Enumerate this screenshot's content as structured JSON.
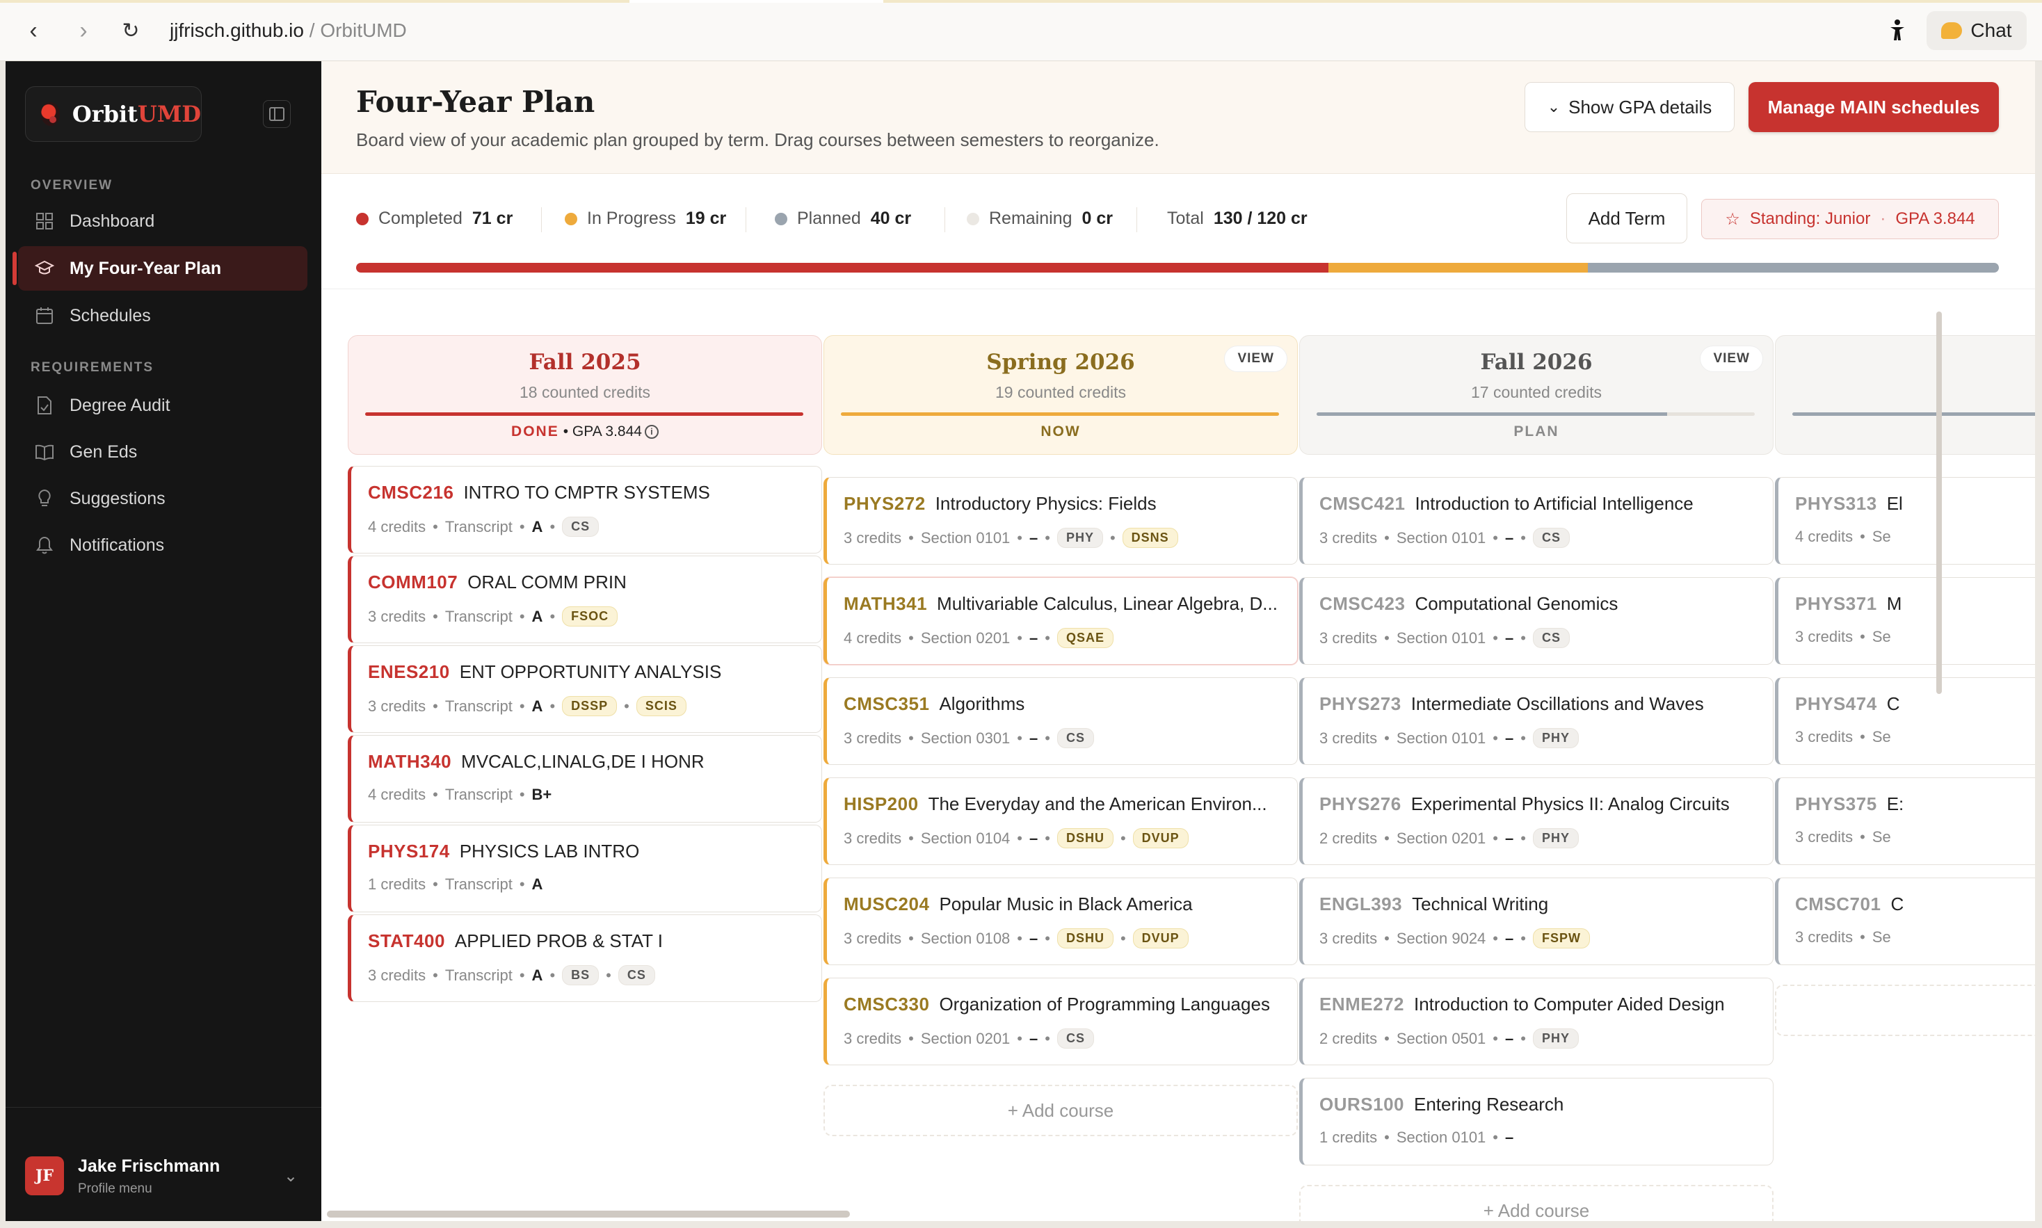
{
  "browser": {
    "url_host": "jjfrisch.github.io",
    "url_sep": " / ",
    "url_title": "OrbitUMD",
    "chat_label": "Chat"
  },
  "sidebar": {
    "brand_orbit": "Orbit",
    "brand_umd": "UMD",
    "overview_label": "OVERVIEW",
    "requirements_label": "REQUIREMENTS",
    "overview_items": [
      {
        "label": "Dashboard",
        "icon": "grid-icon"
      },
      {
        "label": "My Four-Year Plan",
        "icon": "graduation-cap-icon",
        "active": true
      },
      {
        "label": "Schedules",
        "icon": "calendar-icon"
      }
    ],
    "requirement_items": [
      {
        "label": "Degree Audit",
        "icon": "document-check-icon"
      },
      {
        "label": "Gen Eds",
        "icon": "book-open-icon"
      },
      {
        "label": "Suggestions",
        "icon": "lightbulb-icon"
      },
      {
        "label": "Notifications",
        "icon": "bell-icon"
      }
    ],
    "profile": {
      "initials": "JF",
      "name": "Jake Frischmann",
      "sub": "Profile menu"
    }
  },
  "header": {
    "title": "Four-Year Plan",
    "description": "Board view of your academic plan grouped by term. Drag courses between semesters to reorganize.",
    "gpa_button": "Show GPA details",
    "main_button": "Manage MAIN schedules"
  },
  "stats": {
    "completed_label": "Completed",
    "completed_value": "71 cr",
    "inprogress_label": "In Progress",
    "inprogress_value": "19 cr",
    "planned_label": "Planned",
    "planned_value": "40 cr",
    "remaining_label": "Remaining",
    "remaining_value": "0 cr",
    "total_label": "Total",
    "total_value": "130 / 120 cr",
    "add_term": "Add Term",
    "standing": "Standing: Junior",
    "standing_sep": "·",
    "gpa": "GPA 3.844",
    "progress_fractions": {
      "completed": 0.592,
      "in_progress": 0.158,
      "planned": 0.25
    },
    "colors": {
      "completed": "#c7332f",
      "in_progress": "#eeaa3c",
      "planned": "#9aa4ae",
      "remaining": "#ebe8e3"
    }
  },
  "columns": [
    {
      "term": "Fall 2025",
      "credits": "18 counted credits",
      "status": "DONE",
      "gpa": "• GPA 3.844",
      "kind": "done",
      "bar_fill": 1.0,
      "courses": [
        {
          "code": "CMSC216",
          "title": "INTRO TO CMPTR SYSTEMS",
          "credits": "4 credits",
          "source": "Transcript",
          "grade": "A",
          "tags": [
            "CS"
          ]
        },
        {
          "code": "COMM107",
          "title": "ORAL COMM PRIN",
          "credits": "3 credits",
          "source": "Transcript",
          "grade": "A",
          "tags": [
            "FSOC"
          ]
        },
        {
          "code": "ENES210",
          "title": "ENT OPPORTUNITY ANALYSIS",
          "credits": "3 credits",
          "source": "Transcript",
          "grade": "A",
          "tags": [
            "DSSP",
            "SCIS"
          ]
        },
        {
          "code": "MATH340",
          "title": "MVCALC,LINALG,DE I HONR",
          "credits": "4 credits",
          "source": "Transcript",
          "grade": "B+",
          "tags": []
        },
        {
          "code": "PHYS174",
          "title": "PHYSICS LAB INTRO",
          "credits": "1 credits",
          "source": "Transcript",
          "grade": "A",
          "tags": []
        },
        {
          "code": "STAT400",
          "title": "APPLIED PROB & STAT I",
          "credits": "3 credits",
          "source": "Transcript",
          "grade": "A",
          "tags": [
            "BS",
            "CS"
          ]
        }
      ]
    },
    {
      "term": "Spring 2026",
      "credits": "19 counted credits",
      "status": "NOW",
      "view": "VIEW",
      "kind": "now",
      "bar_fill": 1.0,
      "courses": [
        {
          "code": "PHYS272",
          "title": "Introductory Physics: Fields",
          "credits": "3 credits",
          "source": "Section 0101",
          "grade": "–",
          "tags": [
            "PHY",
            "DSNS"
          ]
        },
        {
          "code": "MATH341",
          "title": "Multivariable Calculus, Linear Algebra, D...",
          "credits": "4 credits",
          "source": "Section 0201",
          "grade": "–",
          "tags": [
            "QSAE"
          ],
          "highlight": true
        },
        {
          "code": "CMSC351",
          "title": "Algorithms",
          "credits": "3 credits",
          "source": "Section 0301",
          "grade": "–",
          "tags": [
            "CS"
          ]
        },
        {
          "code": "HISP200",
          "title": "The Everyday and the American Environ...",
          "credits": "3 credits",
          "source": "Section 0104",
          "grade": "–",
          "tags": [
            "DSHU",
            "DVUP"
          ]
        },
        {
          "code": "MUSC204",
          "title": "Popular Music in Black America",
          "credits": "3 credits",
          "source": "Section 0108",
          "grade": "–",
          "tags": [
            "DSHU",
            "DVUP"
          ]
        },
        {
          "code": "CMSC330",
          "title": "Organization of Programming Languages",
          "credits": "3 credits",
          "source": "Section 0201",
          "grade": "–",
          "tags": [
            "CS"
          ]
        }
      ],
      "add": "+ Add course"
    },
    {
      "term": "Fall 2026",
      "credits": "17 counted credits",
      "status": "PLAN",
      "view": "VIEW",
      "kind": "plan",
      "bar_fill": 0.8,
      "courses": [
        {
          "code": "CMSC421",
          "title": "Introduction to Artificial Intelligence",
          "credits": "3 credits",
          "source": "Section 0101",
          "grade": "–",
          "tags": [
            "CS"
          ]
        },
        {
          "code": "CMSC423",
          "title": "Computational Genomics",
          "credits": "3 credits",
          "source": "Section 0101",
          "grade": "–",
          "tags": [
            "CS"
          ]
        },
        {
          "code": "PHYS273",
          "title": "Intermediate Oscillations and Waves",
          "credits": "3 credits",
          "source": "Section 0101",
          "grade": "–",
          "tags": [
            "PHY"
          ]
        },
        {
          "code": "PHYS276",
          "title": "Experimental Physics II: Analog Circuits",
          "credits": "2 credits",
          "source": "Section 0201",
          "grade": "–",
          "tags": [
            "PHY"
          ]
        },
        {
          "code": "ENGL393",
          "title": "Technical Writing",
          "credits": "3 credits",
          "source": "Section 9024",
          "grade": "–",
          "tags": [
            "FSPW"
          ]
        },
        {
          "code": "ENME272",
          "title": "Introduction to Computer Aided Design",
          "credits": "2 credits",
          "source": "Section 0501",
          "grade": "–",
          "tags": [
            "PHY"
          ]
        },
        {
          "code": "OURS100",
          "title": "Entering Research",
          "credits": "1 credits",
          "source": "Section 0101",
          "grade": "–",
          "tags": []
        }
      ],
      "add": "+ Add course"
    },
    {
      "kind": "plan",
      "bar_fill": 1.0,
      "courses": [
        {
          "code": "PHYS313",
          "title": "El",
          "credits": "4 credits",
          "source": "Se"
        },
        {
          "code": "PHYS371",
          "title": "M",
          "credits": "3 credits",
          "source": "Se"
        },
        {
          "code": "PHYS474",
          "title": "C",
          "credits": "3 credits",
          "source": "Se"
        },
        {
          "code": "PHYS375",
          "title": "E:",
          "credits": "3 credits",
          "source": "Se"
        },
        {
          "code": "CMSC701",
          "title": "C",
          "credits": "3 credits",
          "source": "Se"
        }
      ]
    }
  ]
}
